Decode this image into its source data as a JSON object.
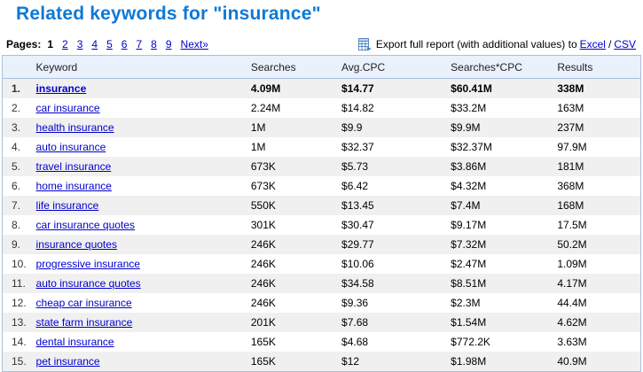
{
  "page": {
    "title": "Related keywords for \"insurance\""
  },
  "pagination": {
    "label": "Pages:",
    "current": "1",
    "pages": [
      "2",
      "3",
      "4",
      "5",
      "6",
      "7",
      "8",
      "9"
    ],
    "next": "Next»"
  },
  "export": {
    "icon": "export-table-icon",
    "text": "Export full report (with additional values) to",
    "excel": "Excel",
    "separator": "/",
    "csv": "CSV"
  },
  "table": {
    "columns": [
      "Keyword",
      "Searches",
      "Avg.CPC",
      "Searches*CPC",
      "Results"
    ],
    "rows": [
      {
        "num": "1.",
        "keyword": "insurance",
        "searches": "4.09M",
        "cpc": "$14.77",
        "searches_cpc": "$60.41M",
        "results": "338M",
        "bold": true
      },
      {
        "num": "2.",
        "keyword": "car insurance",
        "searches": "2.24M",
        "cpc": "$14.82",
        "searches_cpc": "$33.2M",
        "results": "163M"
      },
      {
        "num": "3.",
        "keyword": "health insurance",
        "searches": "1M",
        "cpc": "$9.9",
        "searches_cpc": "$9.9M",
        "results": "237M"
      },
      {
        "num": "4.",
        "keyword": "auto insurance",
        "searches": "1M",
        "cpc": "$32.37",
        "searches_cpc": "$32.37M",
        "results": "97.9M"
      },
      {
        "num": "5.",
        "keyword": "travel insurance",
        "searches": "673K",
        "cpc": "$5.73",
        "searches_cpc": "$3.86M",
        "results": "181M"
      },
      {
        "num": "6.",
        "keyword": "home insurance",
        "searches": "673K",
        "cpc": "$6.42",
        "searches_cpc": "$4.32M",
        "results": "368M"
      },
      {
        "num": "7.",
        "keyword": "life insurance",
        "searches": "550K",
        "cpc": "$13.45",
        "searches_cpc": "$7.4M",
        "results": "168M"
      },
      {
        "num": "8.",
        "keyword": "car insurance quotes",
        "searches": "301K",
        "cpc": "$30.47",
        "searches_cpc": "$9.17M",
        "results": "17.5M"
      },
      {
        "num": "9.",
        "keyword": "insurance quotes",
        "searches": "246K",
        "cpc": "$29.77",
        "searches_cpc": "$7.32M",
        "results": "50.2M"
      },
      {
        "num": "10.",
        "keyword": "progressive insurance",
        "searches": "246K",
        "cpc": "$10.06",
        "searches_cpc": "$2.47M",
        "results": "1.09M"
      },
      {
        "num": "11.",
        "keyword": "auto insurance quotes",
        "searches": "246K",
        "cpc": "$34.58",
        "searches_cpc": "$8.51M",
        "results": "4.17M"
      },
      {
        "num": "12.",
        "keyword": "cheap car insurance",
        "searches": "246K",
        "cpc": "$9.36",
        "searches_cpc": "$2.3M",
        "results": "44.4M"
      },
      {
        "num": "13.",
        "keyword": "state farm insurance",
        "searches": "201K",
        "cpc": "$7.68",
        "searches_cpc": "$1.54M",
        "results": "4.62M"
      },
      {
        "num": "14.",
        "keyword": "dental insurance",
        "searches": "165K",
        "cpc": "$4.68",
        "searches_cpc": "$772.2K",
        "results": "3.63M"
      },
      {
        "num": "15.",
        "keyword": "pet insurance",
        "searches": "165K",
        "cpc": "$12",
        "searches_cpc": "$1.98M",
        "results": "40.9M"
      }
    ]
  },
  "colors": {
    "title_blue": "#0E79D5",
    "link_blue": "#0000CC",
    "header_bg": "#E9F1FC",
    "table_border": "#A9C0DC",
    "shaded_row": "#F0F0F0"
  }
}
